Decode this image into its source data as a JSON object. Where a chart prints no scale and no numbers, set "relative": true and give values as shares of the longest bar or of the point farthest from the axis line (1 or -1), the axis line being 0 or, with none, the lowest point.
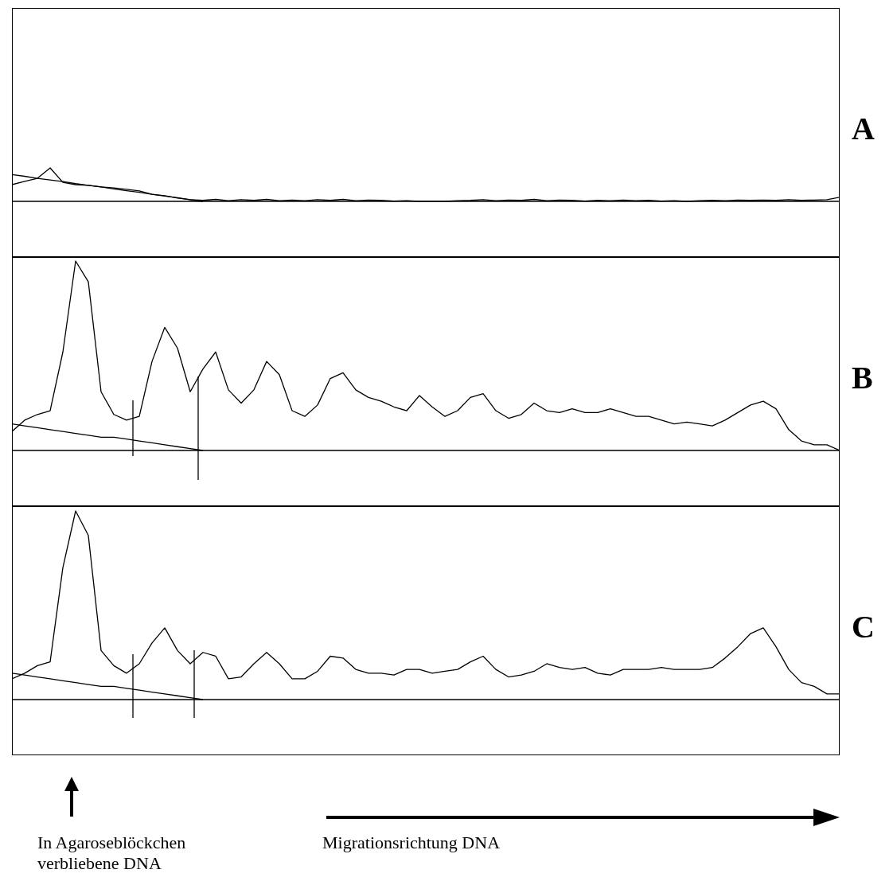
{
  "chart_data": [
    {
      "type": "line",
      "title": "A",
      "relative": true,
      "tick_labels": false,
      "marker": "none",
      "line_style": "solid",
      "categories": [
        null,
        null,
        null,
        null,
        null,
        null,
        null,
        null,
        null,
        null,
        null,
        null,
        null,
        null,
        null,
        null,
        null,
        null,
        null,
        null,
        null,
        null,
        null,
        null,
        null,
        null,
        null,
        null,
        null,
        null,
        null,
        null,
        null,
        null,
        null,
        null,
        null,
        null,
        null,
        null,
        null,
        null,
        null,
        null,
        null,
        null,
        null,
        null,
        null,
        null,
        null,
        null,
        null,
        null,
        null,
        null,
        null,
        null,
        null,
        null,
        null,
        null,
        null,
        null,
        null,
        null
      ],
      "series": [
        {
          "color": "#000000",
          "values": [
            0.5,
            0.6,
            0.69,
            1.0,
            0.57,
            0.5,
            0.48,
            0.43,
            0.4,
            0.36,
            0.31,
            0.21,
            0.17,
            0.1,
            0.05,
            0.03,
            0.06,
            0.02,
            0.05,
            0.03,
            0.06,
            0.02,
            0.04,
            0.02,
            0.05,
            0.03,
            0.06,
            0.02,
            0.04,
            0.03,
            0.01,
            0.02,
            0.0,
            0.0,
            0.0,
            0.02,
            0.03,
            0.05,
            0.02,
            0.04,
            0.03,
            0.06,
            0.02,
            0.04,
            0.03,
            0.01,
            0.03,
            0.02,
            0.04,
            0.02,
            0.03,
            0.01,
            0.02,
            0.0,
            0.02,
            0.03,
            0.02,
            0.04,
            0.03,
            0.04,
            0.03,
            0.05,
            0.03,
            0.04,
            0.05,
            0.12
          ]
        },
        {
          "type": "line",
          "color": "#000000",
          "values": [
            0.8,
            0.75,
            0.69,
            0.64,
            0.59,
            0.53,
            0.48,
            0.43,
            0.37,
            0.32,
            0.27,
            0.21,
            0.16,
            0.11,
            0.05,
            0,
            null,
            null,
            null,
            null,
            null,
            null,
            null,
            null,
            null,
            null,
            null,
            null,
            null,
            null,
            null,
            null,
            null,
            null,
            null,
            null,
            null,
            null,
            null,
            null,
            null,
            null,
            null,
            null,
            null,
            null,
            null,
            null,
            null,
            null,
            null,
            null,
            null,
            null,
            null,
            null,
            null,
            null,
            null,
            null,
            null,
            null,
            null,
            null,
            null,
            null
          ]
        }
      ]
    },
    {
      "type": "line",
      "title": "B",
      "relative": true,
      "tick_labels": false,
      "marker": "none",
      "line_style": "solid",
      "categories": [
        null,
        null,
        null,
        null,
        null,
        null,
        null,
        null,
        null,
        null,
        null,
        null,
        null,
        null,
        null,
        null,
        null,
        null,
        null,
        null,
        null,
        null,
        null,
        null,
        null,
        null,
        null,
        null,
        null,
        null,
        null,
        null,
        null,
        null,
        null,
        null,
        null,
        null,
        null,
        null,
        null,
        null,
        null,
        null,
        null,
        null,
        null,
        null,
        null,
        null,
        null,
        null,
        null,
        null,
        null,
        null,
        null,
        null,
        null,
        null,
        null,
        null,
        null,
        null,
        null,
        null
      ],
      "series": [
        {
          "color": "#000000",
          "values": [
            0.1,
            0.16,
            0.19,
            0.21,
            0.52,
            1.0,
            0.89,
            0.31,
            0.19,
            0.16,
            0.18,
            0.47,
            0.65,
            0.54,
            0.31,
            0.43,
            0.52,
            0.32,
            0.25,
            0.32,
            0.47,
            0.4,
            0.21,
            0.18,
            0.24,
            0.38,
            0.41,
            0.32,
            0.28,
            0.26,
            0.23,
            0.21,
            0.29,
            0.23,
            0.18,
            0.21,
            0.28,
            0.3,
            0.21,
            0.17,
            0.19,
            0.25,
            0.21,
            0.2,
            0.22,
            0.2,
            0.2,
            0.22,
            0.2,
            0.18,
            0.18,
            0.16,
            0.14,
            0.15,
            0.14,
            0.13,
            0.16,
            0.2,
            0.24,
            0.26,
            0.22,
            0.11,
            0.05,
            0.03,
            0.03,
            0.0
          ]
        },
        {
          "type": "line",
          "color": "#000000",
          "values": [
            0.14,
            0.13,
            0.12,
            0.11,
            0.1,
            0.09,
            0.08,
            0.07,
            0.07,
            0.06,
            0.05,
            0.04,
            0.03,
            0.02,
            0.01,
            0,
            null,
            null,
            null,
            null,
            null,
            null,
            null,
            null,
            null,
            null,
            null,
            null,
            null,
            null,
            null,
            null,
            null,
            null,
            null,
            null,
            null,
            null,
            null,
            null,
            null,
            null,
            null,
            null,
            null,
            null,
            null,
            null,
            null,
            null,
            null,
            null,
            null,
            null,
            null,
            null,
            null,
            null,
            null,
            null,
            null,
            null,
            null,
            null,
            null,
            null
          ]
        }
      ]
    },
    {
      "type": "line",
      "title": "C",
      "relative": true,
      "tick_labels": false,
      "marker": "none",
      "line_style": "solid",
      "categories": [
        null,
        null,
        null,
        null,
        null,
        null,
        null,
        null,
        null,
        null,
        null,
        null,
        null,
        null,
        null,
        null,
        null,
        null,
        null,
        null,
        null,
        null,
        null,
        null,
        null,
        null,
        null,
        null,
        null,
        null,
        null,
        null,
        null,
        null,
        null,
        null,
        null,
        null,
        null,
        null,
        null,
        null,
        null,
        null,
        null,
        null,
        null,
        null,
        null,
        null,
        null,
        null,
        null,
        null,
        null,
        null,
        null,
        null,
        null,
        null,
        null,
        null,
        null,
        null,
        null,
        null
      ],
      "series": [
        {
          "color": "#000000",
          "values": [
            0.11,
            0.14,
            0.18,
            0.2,
            0.7,
            1.0,
            0.87,
            0.26,
            0.18,
            0.14,
            0.19,
            0.3,
            0.38,
            0.26,
            0.19,
            0.25,
            0.23,
            0.11,
            0.12,
            0.19,
            0.25,
            0.19,
            0.11,
            0.11,
            0.15,
            0.23,
            0.22,
            0.16,
            0.14,
            0.14,
            0.13,
            0.16,
            0.16,
            0.14,
            0.15,
            0.16,
            0.2,
            0.23,
            0.16,
            0.12,
            0.13,
            0.15,
            0.19,
            0.17,
            0.16,
            0.17,
            0.14,
            0.13,
            0.16,
            0.16,
            0.16,
            0.17,
            0.16,
            0.16,
            0.16,
            0.17,
            0.22,
            0.28,
            0.35,
            0.38,
            0.28,
            0.16,
            0.09,
            0.07,
            0.03,
            0.03
          ]
        },
        {
          "type": "line",
          "color": "#000000",
          "values": [
            0.14,
            0.13,
            0.12,
            0.11,
            0.1,
            0.09,
            0.08,
            0.07,
            0.07,
            0.06,
            0.05,
            0.04,
            0.03,
            0.02,
            0.01,
            0,
            null,
            null,
            null,
            null,
            null,
            null,
            null,
            null,
            null,
            null,
            null,
            null,
            null,
            null,
            null,
            null,
            null,
            null,
            null,
            null,
            null,
            null,
            null,
            null,
            null,
            null,
            null,
            null,
            null,
            null,
            null,
            null,
            null,
            null,
            null,
            null,
            null,
            null,
            null,
            null,
            null,
            null,
            null,
            null,
            null,
            null,
            null,
            null,
            null,
            null
          ]
        }
      ],
      "annotations": [
        "In Agaroseblöckchen verbliebene DNA",
        "Migrationsrichtung DNA"
      ]
    }
  ]
}
